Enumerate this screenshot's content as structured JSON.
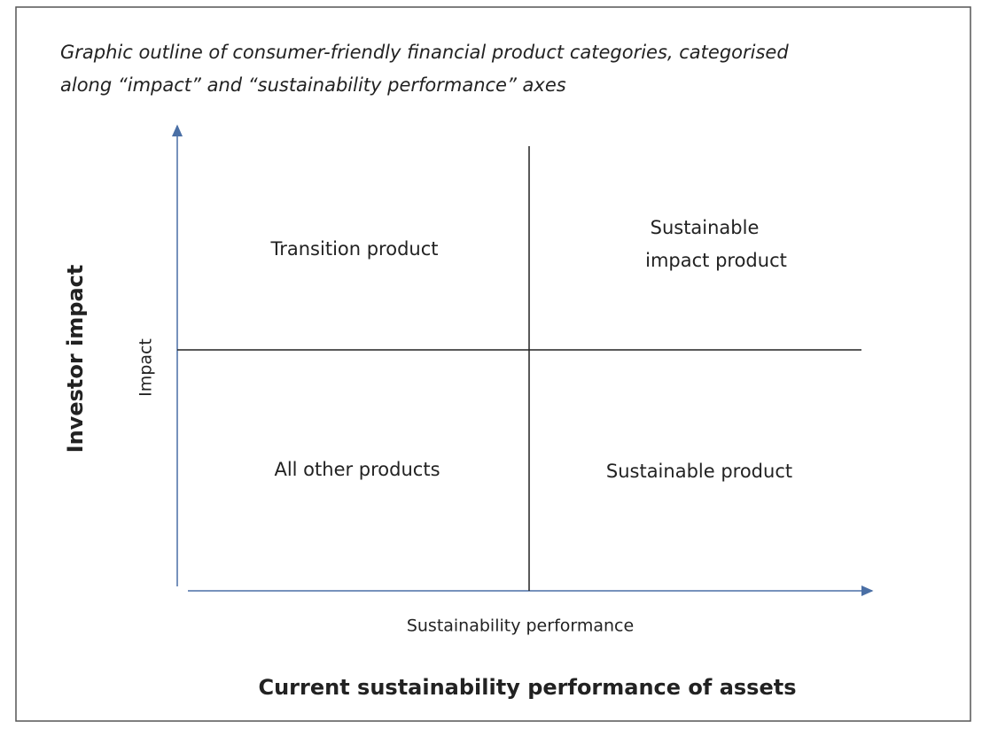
{
  "diagram": {
    "title_lines": [
      "Graphic outline of consumer-friendly financial product categories, categorised",
      "along “impact” and “sustainability performance” axes"
    ],
    "y_axis_label": "Impact",
    "y_axis_title": "Investor impact",
    "x_axis_label": "Sustainability performance",
    "x_axis_title": "Current sustainability performance of assets",
    "quadrants": {
      "top_left": [
        "Transition product"
      ],
      "top_right": [
        "Sustainable",
        "impact product"
      ],
      "bottom_left": [
        "All other products"
      ],
      "bottom_right": [
        "Sustainable product"
      ]
    }
  }
}
